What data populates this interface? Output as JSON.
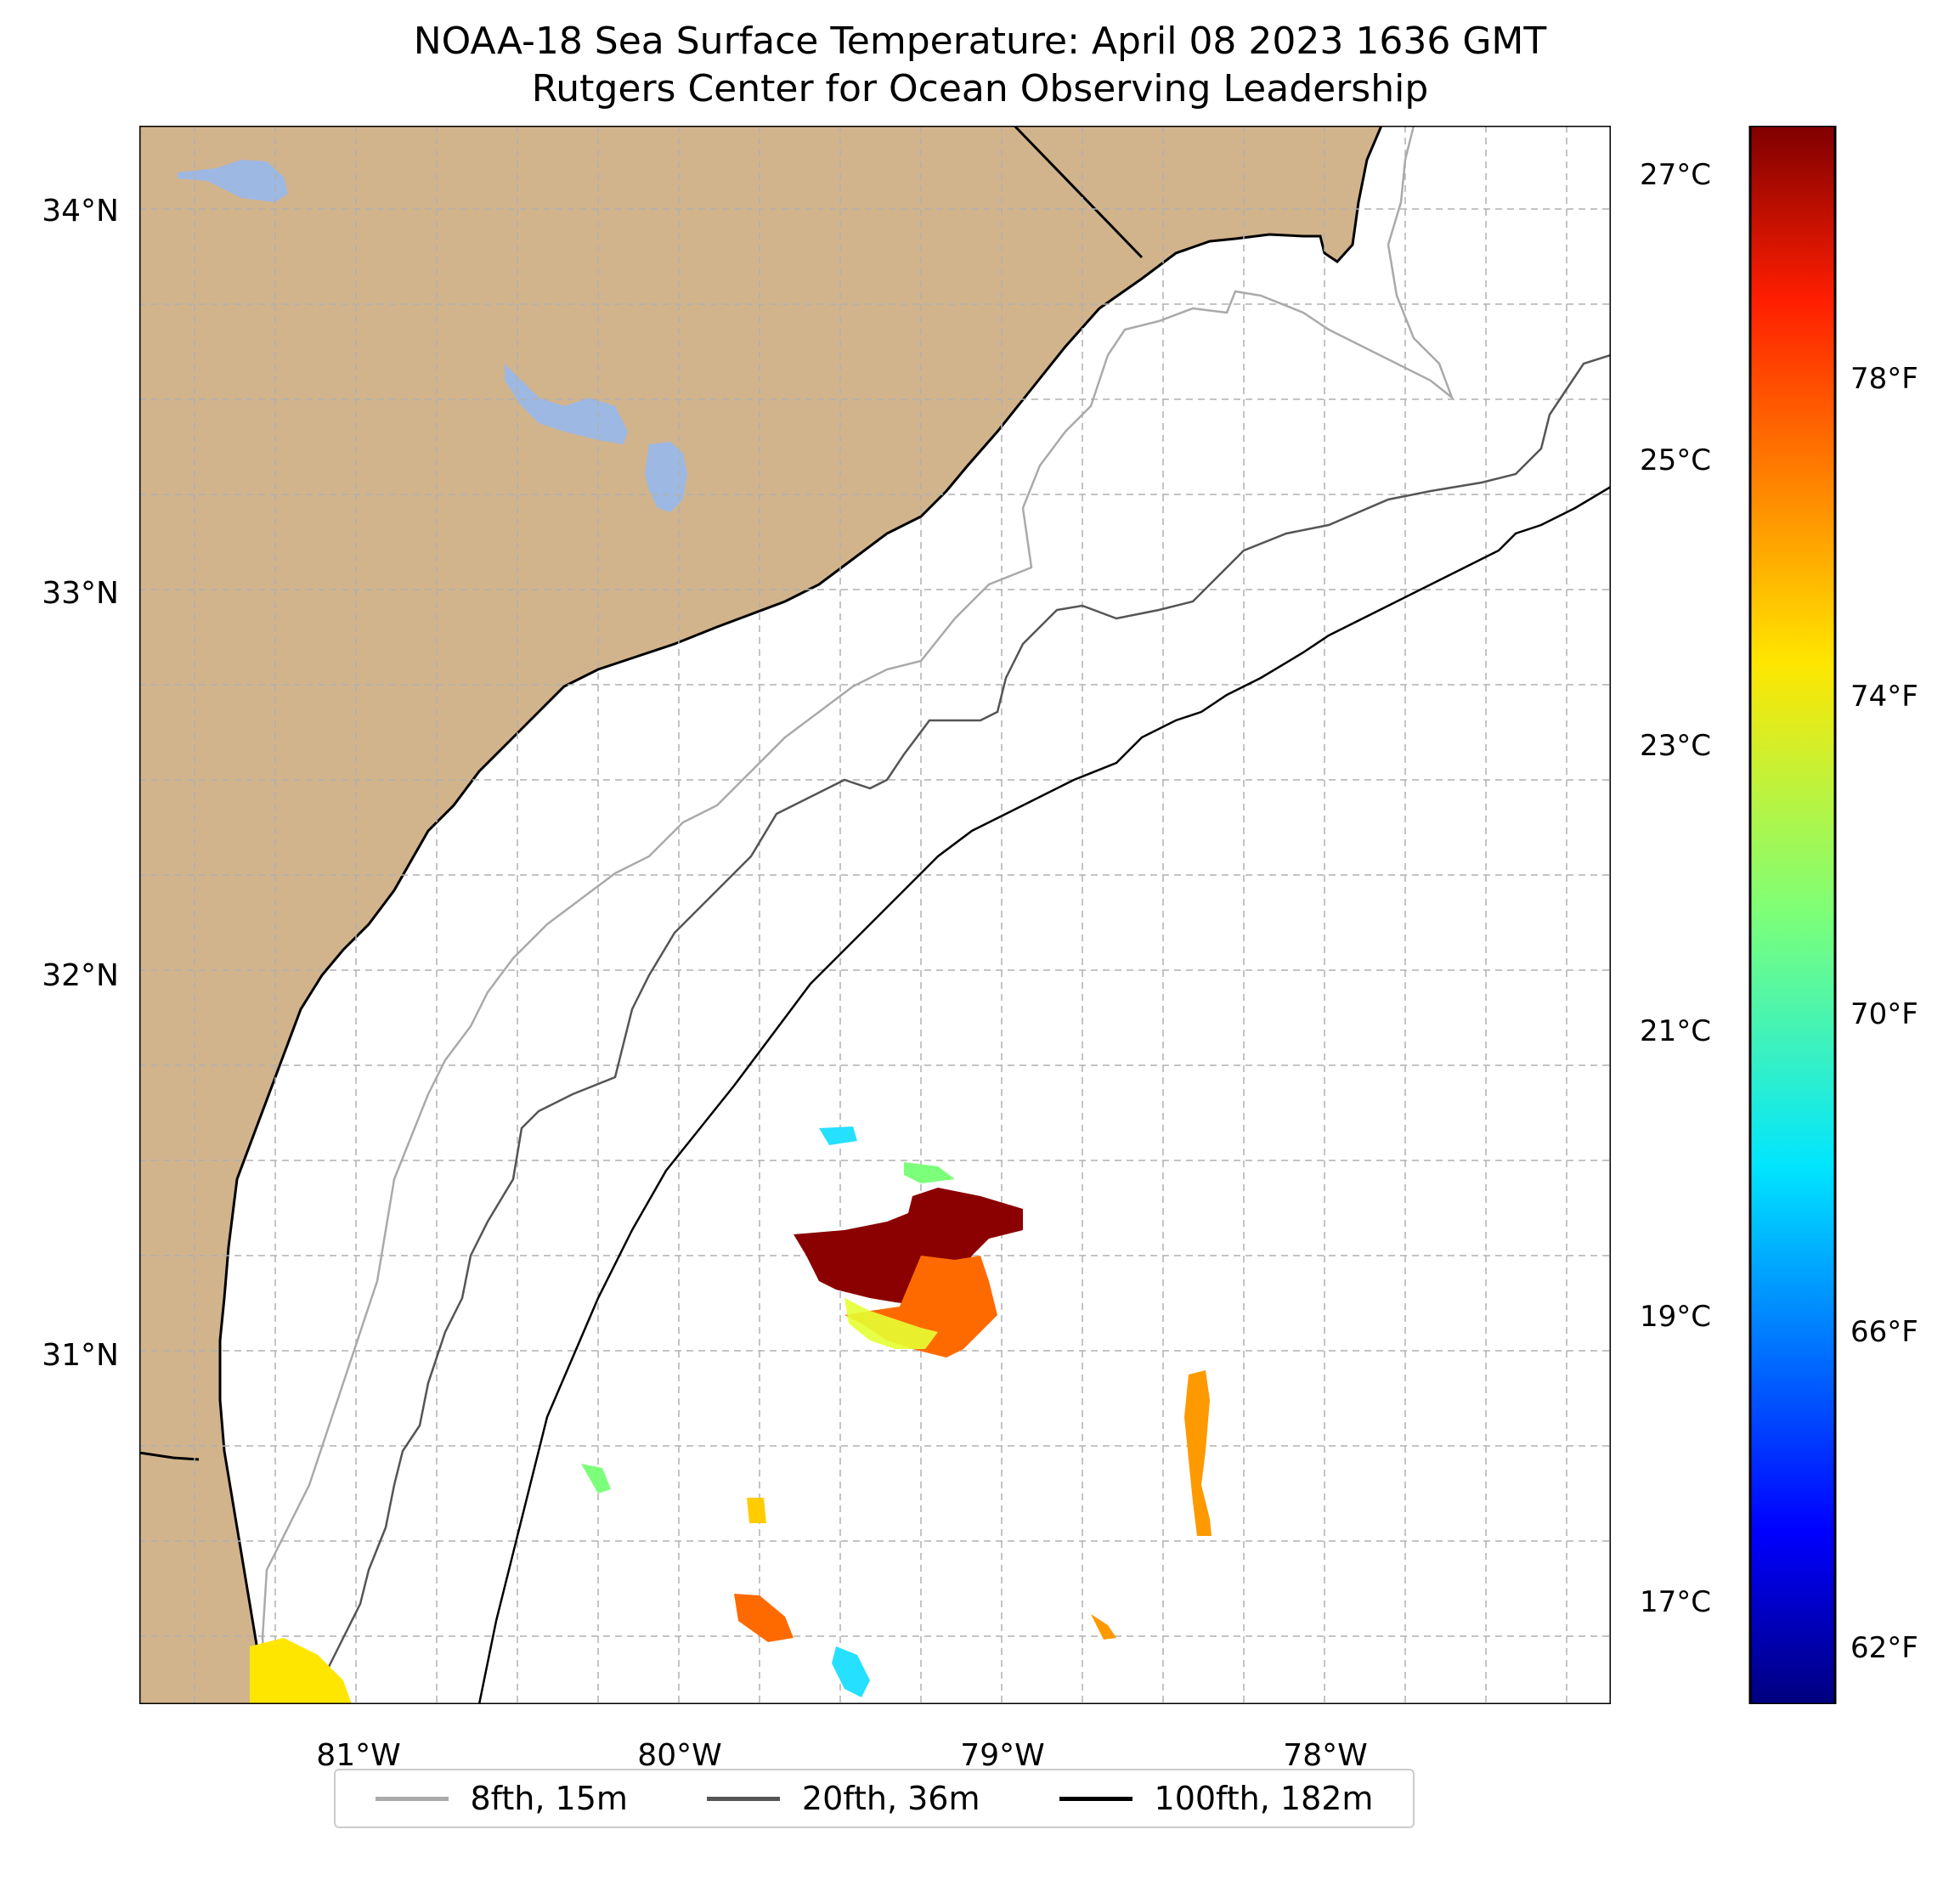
{
  "title": {
    "line1": "NOAA-18 Sea Surface Temperature: April 08 2023 1636 GMT",
    "line2": "Rutgers Center for Ocean Observing Leadership"
  },
  "map": {
    "lat_labels": [
      "34°N",
      "33°N",
      "32°N",
      "31°N"
    ],
    "lon_labels": [
      "81°W",
      "80°W",
      "79°W",
      "78°W"
    ]
  },
  "colorbar": {
    "celsius_labels": [
      "27°C",
      "25°C",
      "23°C",
      "21°C",
      "19°C",
      "17°C"
    ],
    "fahrenheit_labels": [
      "78°F",
      "74°F",
      "70°F",
      "66°F",
      "62°F"
    ],
    "range_celsius": [
      16.2,
      27.3
    ]
  },
  "legend": {
    "items": [
      {
        "label": "8fth, 15m",
        "color": "#aaaaaa"
      },
      {
        "label": "20fth, 36m",
        "color": "#555555"
      },
      {
        "label": "100fth, 182m",
        "color": "#000000"
      }
    ]
  },
  "colors": {
    "land": "#d2b48c",
    "lakes": "#9db8e3",
    "warm": "#8b0000"
  }
}
